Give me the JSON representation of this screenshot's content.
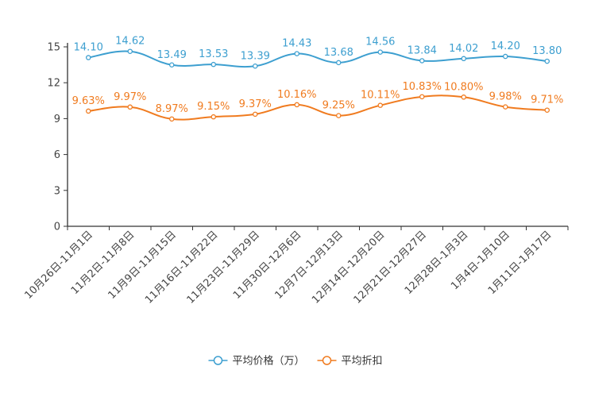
{
  "chart_data": {
    "type": "line",
    "title": "",
    "xlabel": "",
    "ylabel": "",
    "ylim": [
      0,
      15
    ],
    "y_ticks": [
      0,
      3,
      6,
      9,
      12,
      15
    ],
    "grid": false,
    "legend_position": "bottom-center",
    "categories": [
      "10月26日-11月1日",
      "11月2日-11月8日",
      "11月9日-11月15日",
      "11月16日-11月22日",
      "11月23日-11月29日",
      "11月30日-12月6日",
      "12月7日-12月13日",
      "12月14日-12月20日",
      "12月21日-12月27日",
      "12月28日-1月3日",
      "1月4日-1月10日",
      "1月11日-1月17日"
    ],
    "series": [
      {
        "name": "平均价格（万）",
        "color": "#3d9fd0",
        "values": [
          14.1,
          14.62,
          13.49,
          13.53,
          13.39,
          14.43,
          13.68,
          14.56,
          13.84,
          14.02,
          14.2,
          13.8
        ],
        "labels": [
          "14.10",
          "14.62",
          "13.49",
          "13.53",
          "13.39",
          "14.43",
          "13.68",
          "14.56",
          "13.84",
          "14.02",
          "14.20",
          "13.80"
        ]
      },
      {
        "name": "平均折扣",
        "color": "#f07b1f",
        "values": [
          9.63,
          9.97,
          8.97,
          9.15,
          9.37,
          10.16,
          9.25,
          10.11,
          10.83,
          10.8,
          9.98,
          9.71
        ],
        "labels": [
          "9.63%",
          "9.97%",
          "8.97%",
          "9.15%",
          "9.37%",
          "10.16%",
          "9.25%",
          "10.11%",
          "10.83%",
          "10.80%",
          "9.98%",
          "9.71%"
        ]
      }
    ]
  }
}
